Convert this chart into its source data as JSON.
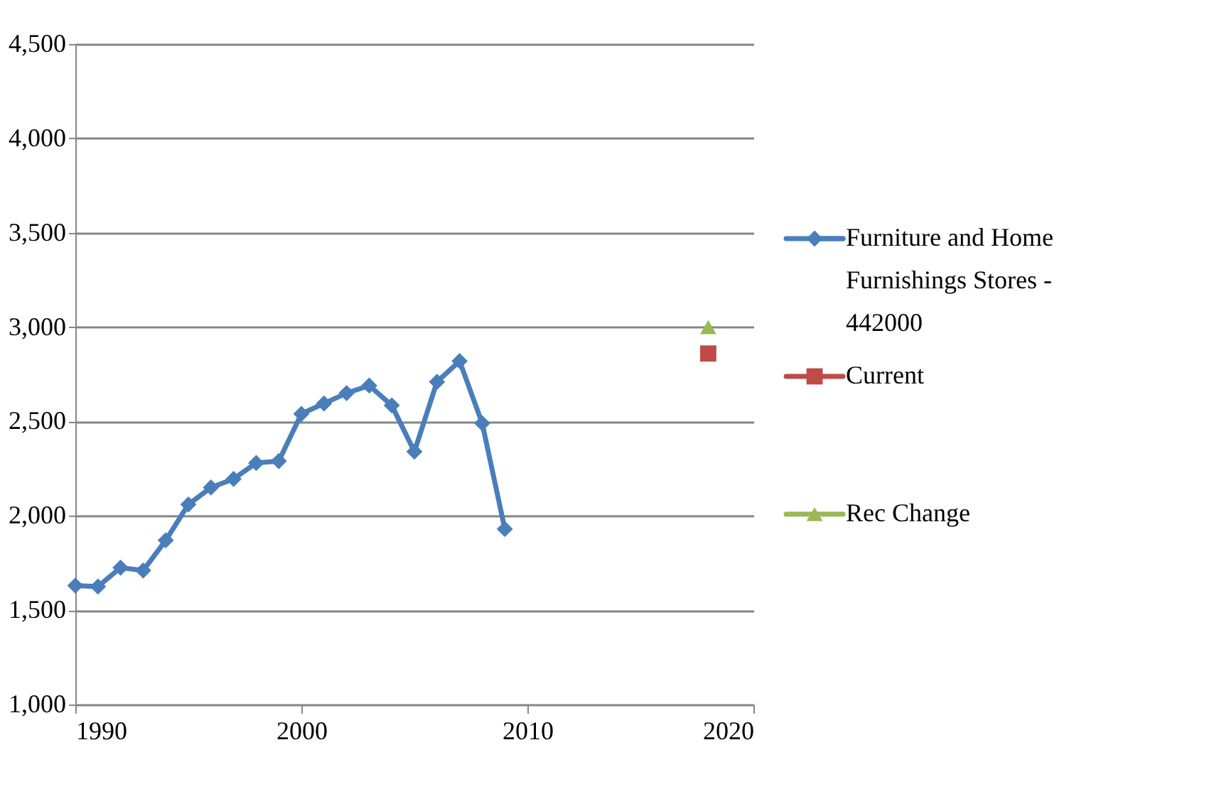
{
  "chart_data": {
    "type": "line",
    "x": [
      1990,
      1991,
      1992,
      1993,
      1994,
      1995,
      1996,
      1997,
      1998,
      1999,
      2000,
      2001,
      2002,
      2003,
      2004,
      2005,
      2006,
      2007,
      2008,
      2009
    ],
    "series": [
      {
        "name": "Furniture and Home Furnishings Stores - 442000",
        "color": "#4a7ebb",
        "marker": "diamond",
        "values": [
          1630,
          1625,
          1725,
          1710,
          1870,
          2060,
          2150,
          2195,
          2280,
          2290,
          2540,
          2595,
          2650,
          2690,
          2585,
          2340,
          2710,
          2820,
          2490,
          1930
        ]
      },
      {
        "name": "Current",
        "color": "#be4b48",
        "type": "scatter",
        "marker": "square",
        "x": [
          2018
        ],
        "values": [
          2860
        ]
      },
      {
        "name": "Rec Change",
        "color": "#98b954",
        "type": "scatter",
        "marker": "triangle",
        "x": [
          2018
        ],
        "values": [
          3000
        ]
      }
    ],
    "xlim": [
      1990,
      2020
    ],
    "xticks": [
      1990,
      2000,
      2010,
      2020
    ],
    "ylim": [
      1000,
      4500
    ],
    "yticks": [
      {
        "value": 1000,
        "label": "1,000"
      },
      {
        "value": 1500,
        "label": "1,500"
      },
      {
        "value": 2000,
        "label": "2,000"
      },
      {
        "value": 2500,
        "label": "2,500"
      },
      {
        "value": 3000,
        "label": "3,000"
      },
      {
        "value": 3500,
        "label": "3,500"
      },
      {
        "value": 4000,
        "label": "4,000"
      },
      {
        "value": 4500,
        "label": "4,500"
      }
    ],
    "grid": "y",
    "legend": "right"
  }
}
